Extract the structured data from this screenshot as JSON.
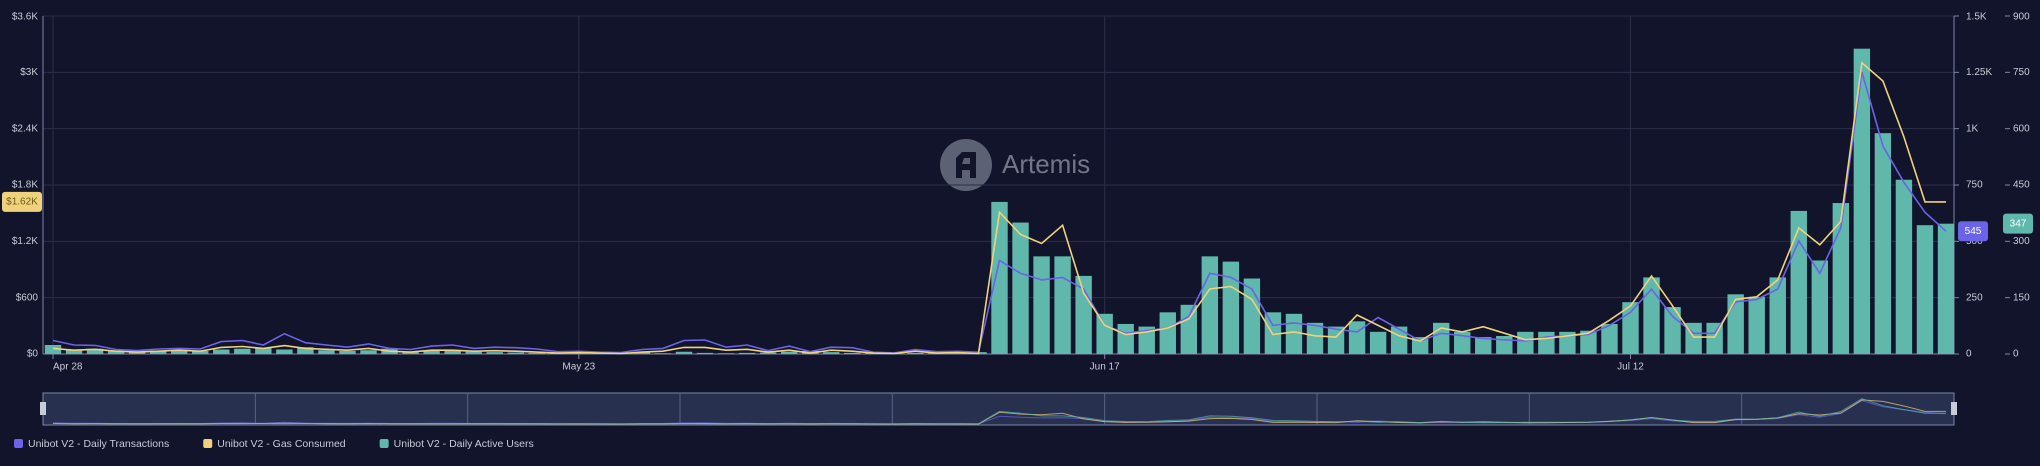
{
  "chart_data": {
    "type": "bar",
    "watermark": "Artemis",
    "categories": [
      "Apr 28",
      null,
      null,
      null,
      null,
      null,
      null,
      null,
      null,
      null,
      null,
      null,
      null,
      null,
      null,
      null,
      null,
      null,
      null,
      null,
      null,
      null,
      null,
      null,
      null,
      "May 23",
      null,
      null,
      null,
      null,
      null,
      null,
      null,
      null,
      null,
      null,
      null,
      null,
      null,
      null,
      null,
      null,
      null,
      null,
      null,
      null,
      null,
      null,
      null,
      null,
      "Jun 17",
      null,
      null,
      null,
      null,
      null,
      null,
      null,
      null,
      null,
      null,
      null,
      null,
      null,
      null,
      null,
      null,
      null,
      null,
      null,
      null,
      null,
      null,
      null,
      null,
      "Jul 12",
      null,
      null,
      null,
      null,
      null,
      null,
      null,
      null,
      null,
      null,
      null,
      null,
      null,
      null,
      null
    ],
    "series": [
      {
        "name": "Unibot V2 - Daily Transactions",
        "type": "line",
        "axis": "y2",
        "color": "#6b63e8",
        "values": [
          60,
          40,
          38,
          20,
          15,
          22,
          25,
          22,
          55,
          60,
          40,
          90,
          50,
          40,
          30,
          45,
          25,
          20,
          35,
          40,
          25,
          30,
          28,
          22,
          10,
          12,
          8,
          6,
          20,
          25,
          60,
          62,
          30,
          40,
          15,
          35,
          10,
          30,
          28,
          8,
          5,
          20,
          10,
          12,
          8,
          415,
          358,
          329,
          340,
          288,
          127,
          92,
          104,
          115,
          167,
          358,
          340,
          288,
          127,
          138,
          127,
          110,
          98,
          162,
          110,
          58,
          92,
          81,
          69,
          63,
          58,
          75,
          81,
          87,
          127,
          185,
          288,
          167,
          92,
          92,
          231,
          242,
          288,
          502,
          358,
          560,
          1252,
          923,
          762,
          629,
          545
        ]
      },
      {
        "name": "Unibot V2 - Gas Consumed",
        "type": "line",
        "axis": "y",
        "color": "#f0d27a",
        "values": [
          60,
          40,
          50,
          30,
          20,
          30,
          40,
          30,
          70,
          80,
          60,
          90,
          60,
          50,
          40,
          60,
          30,
          20,
          40,
          40,
          30,
          35,
          30,
          20,
          10,
          15,
          10,
          5,
          20,
          30,
          70,
          70,
          40,
          50,
          20,
          40,
          10,
          40,
          30,
          10,
          5,
          30,
          10,
          15,
          5,
          1510,
          1274,
          1177,
          1371,
          651,
          305,
          208,
          235,
          277,
          374,
          692,
          720,
          582,
          208,
          235,
          194,
          180,
          415,
          305,
          194,
          138,
          277,
          235,
          291,
          222,
          152,
          166,
          194,
          222,
          360,
          512,
          831,
          512,
          180,
          180,
          582,
          609,
          789,
          1343,
          1163,
          1412,
          3102,
          2908,
          2312,
          1620,
          1620
        ],
        "value_labels": [
          null,
          null,
          null,
          null,
          null,
          null,
          null,
          null,
          null,
          null,
          null,
          null,
          null,
          null,
          null,
          null,
          null,
          null,
          null,
          null,
          null,
          null,
          null,
          null,
          null,
          null,
          null,
          null,
          null,
          null,
          null,
          null,
          null,
          null,
          null,
          null,
          null,
          null,
          null,
          null,
          null,
          null,
          null,
          null,
          null,
          null,
          null,
          null,
          null,
          null,
          null,
          null,
          null,
          null,
          null,
          null,
          null,
          null,
          null,
          null,
          null,
          null,
          null,
          null,
          null,
          null,
          null,
          null,
          null,
          null,
          null,
          null,
          null,
          null,
          null,
          null,
          null,
          null,
          null,
          null,
          null,
          null,
          null,
          null,
          null,
          null,
          null,
          null,
          null,
          null,
          "$1.62K"
        ]
      },
      {
        "name": "Unibot V2 - Daily Active Users",
        "type": "bar",
        "axis": "y3",
        "color": "#5fb8ab",
        "values": [
          24,
          12,
          14,
          8,
          6,
          9,
          10,
          8,
          12,
          14,
          16,
          12,
          18,
          10,
          8,
          10,
          14,
          6,
          8,
          9,
          6,
          5,
          4,
          3,
          4,
          6,
          3,
          2,
          4,
          2,
          6,
          3,
          2,
          3,
          4,
          6,
          8,
          5,
          3,
          4,
          2,
          3,
          3,
          4,
          5,
          405,
          350,
          260,
          260,
          208,
          107,
          80,
          73,
          111,
          131,
          260,
          246,
          201,
          111,
          107,
          83,
          73,
          87,
          59,
          73,
          45,
          83,
          59,
          45,
          48,
          59,
          59,
          59,
          62,
          80,
          138,
          204,
          125,
          83,
          83,
          159,
          152,
          204,
          381,
          249,
          402,
          813,
          588,
          464,
          343,
          347
        ]
      }
    ],
    "ylim": [
      0,
      3600
    ],
    "yticks": [
      {
        "value": 0,
        "label": "$0"
      },
      {
        "value": 600,
        "label": "$600"
      },
      {
        "value": 1200,
        "label": "$1.2K"
      },
      {
        "value": 1800,
        "label": "$1.8K"
      },
      {
        "value": 2400,
        "label": "$2.4K"
      },
      {
        "value": 3000,
        "label": "$3K"
      },
      {
        "value": 3600,
        "label": "$3.6K"
      }
    ],
    "y2lim": [
      0,
      1500
    ],
    "y2ticks": [
      0,
      250,
      500,
      750,
      {
        "value": 1000,
        "label": "1K"
      },
      {
        "value": 1250,
        "label": "1.25K"
      },
      {
        "value": 1500,
        "label": "1.5K"
      }
    ],
    "y3lim": [
      0,
      900
    ],
    "y3ticks": [
      0,
      150,
      300,
      450,
      600,
      750,
      900
    ],
    "grid": true
  }
}
